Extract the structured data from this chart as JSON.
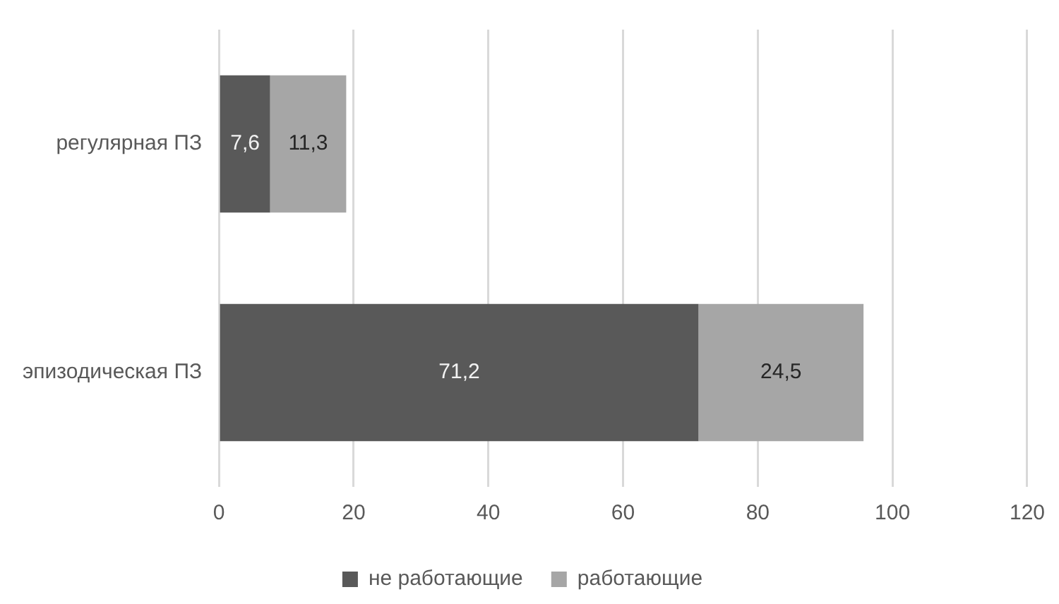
{
  "chart_data": {
    "type": "bar",
    "orientation": "horizontal",
    "stacked": true,
    "categories": [
      "регулярная ПЗ",
      "эпизодическая ПЗ"
    ],
    "series": [
      {
        "name": "не работающие",
        "color": "#595959",
        "values": [
          7.6,
          71.2
        ],
        "value_labels": [
          "7,6",
          "71,2"
        ]
      },
      {
        "name": "работающие",
        "color": "#a6a6a6",
        "values": [
          11.3,
          24.5
        ],
        "value_labels": [
          "11,3",
          "24,5"
        ]
      }
    ],
    "xlim": [
      0,
      120
    ],
    "xticks": [
      0,
      20,
      40,
      60,
      80,
      100,
      120
    ],
    "grid": "x",
    "legend": "bottom"
  }
}
